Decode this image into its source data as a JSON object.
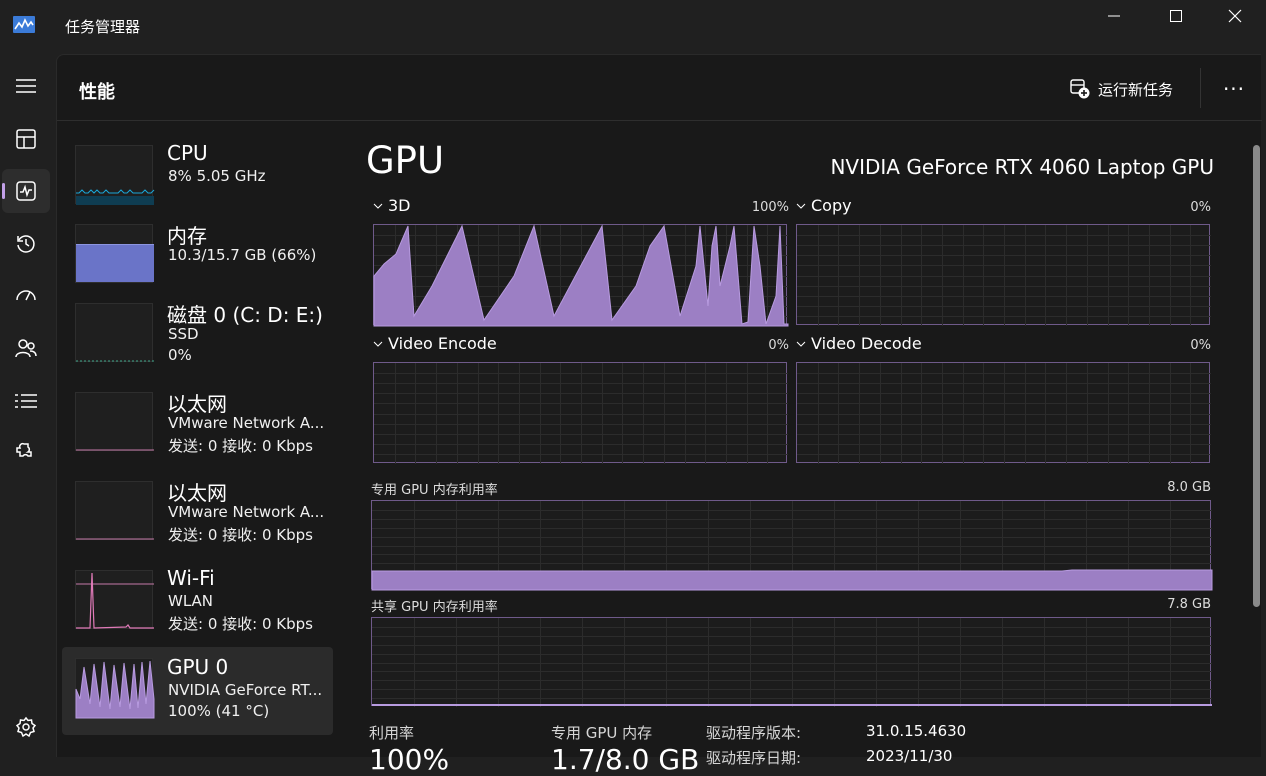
{
  "window": {
    "title": "任务管理器"
  },
  "header": {
    "title": "性能",
    "run_task_label": "运行新任务",
    "more_label": "···"
  },
  "nav": {
    "items": [
      {
        "name": "menu-icon"
      },
      {
        "name": "processes-icon"
      },
      {
        "name": "performance-icon",
        "active": true
      },
      {
        "name": "app-history-icon"
      },
      {
        "name": "startup-apps-icon"
      },
      {
        "name": "users-icon"
      },
      {
        "name": "details-icon"
      },
      {
        "name": "services-icon"
      },
      {
        "name": "settings-icon"
      }
    ]
  },
  "sidebar": {
    "items": [
      {
        "name": "CPU",
        "line1": "8%  5.05 GHz",
        "line2": ""
      },
      {
        "name": "内存",
        "line1": "10.3/15.7 GB (66%)",
        "line2": ""
      },
      {
        "name": "磁盘 0 (C: D: E:)",
        "line1": "SSD",
        "line2": "0%"
      },
      {
        "name": "以太网",
        "line1": "VMware Network A...",
        "line2": "发送: 0  接收: 0 Kbps"
      },
      {
        "name": "以太网",
        "line1": "VMware Network A...",
        "line2": "发送: 0  接收: 0 Kbps"
      },
      {
        "name": "Wi-Fi",
        "line1": "WLAN",
        "line2": "发送: 0  接收: 0 Kbps"
      },
      {
        "name": "GPU 0",
        "line1": "NVIDIA GeForce RT...",
        "line2": "100%  (41 °C)"
      }
    ]
  },
  "gpu": {
    "title": "GPU",
    "model": "NVIDIA GeForce RTX 4060 Laptop GPU",
    "engines": [
      {
        "label": "3D",
        "max": "100%"
      },
      {
        "label": "Copy",
        "max": "0%"
      },
      {
        "label": "Video Encode",
        "max": "0%"
      },
      {
        "label": "Video Decode",
        "max": "0%"
      }
    ],
    "dedicated_mem": {
      "label": "专用 GPU 内存利用率",
      "max": "8.0 GB"
    },
    "shared_mem": {
      "label": "共享 GPU 内存利用率",
      "max": "7.8 GB"
    },
    "stats": {
      "utilization_label": "利用率",
      "utilization_value": "100%",
      "dedicated_label": "专用 GPU 内存",
      "dedicated_value": "1.7/8.0 GB",
      "driver_version_label": "驱动程序版本:",
      "driver_version_value": "31.0.15.4630",
      "driver_date_label": "驱动程序日期:",
      "driver_date_value": "2023/11/30"
    }
  },
  "colors": {
    "gpu_graph": "#9c7fc4",
    "gpu_border": "#6f5a8a",
    "cpu_line": "#1aa7d9",
    "memory_fill": "#6a74c8",
    "disk_line": "#3fa58a",
    "network_line": "#c47aa8"
  }
}
